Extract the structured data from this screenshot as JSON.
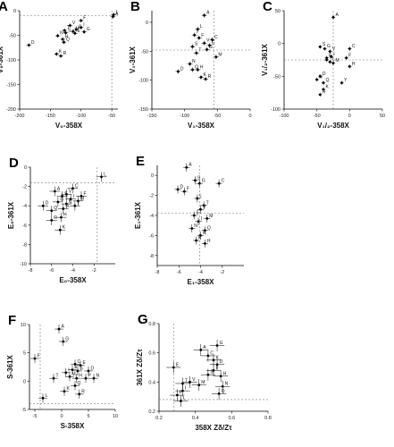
{
  "chart_data": [
    {
      "panel": "A",
      "type": "scatter",
      "xlabel": "V₀-358X",
      "ylabel": "V₀-361X",
      "xlim": [
        -200,
        -40
      ],
      "ylim": [
        -200,
        0
      ],
      "xticks": [
        -200,
        -150,
        -100,
        -50
      ],
      "yticks": [
        0,
        -50,
        -100,
        -150,
        -200
      ],
      "ref_x": -50,
      "ref_y": -10,
      "xerr": 4,
      "yerr": 4,
      "points": [
        {
          "l": "D",
          "x": -185,
          "y": -70
        },
        {
          "l": "F",
          "x": -100,
          "y": -20
        },
        {
          "l": "L",
          "x": -47,
          "y": -8
        },
        {
          "l": "A",
          "x": -48,
          "y": -12
        },
        {
          "l": "V",
          "x": -118,
          "y": -30
        },
        {
          "l": "I",
          "x": -100,
          "y": -34
        },
        {
          "l": "C",
          "x": -108,
          "y": -38
        },
        {
          "l": "T",
          "x": -127,
          "y": -40
        },
        {
          "l": "M",
          "x": -113,
          "y": -42
        },
        {
          "l": "G",
          "x": -95,
          "y": -43
        },
        {
          "l": "S",
          "x": -125,
          "y": -45
        },
        {
          "l": "E",
          "x": -110,
          "y": -46
        },
        {
          "l": "N",
          "x": -138,
          "y": -51
        },
        {
          "l": "H",
          "x": -130,
          "y": -58
        },
        {
          "l": "Q",
          "x": -128,
          "y": -64
        },
        {
          "l": "K",
          "x": -140,
          "y": -88
        },
        {
          "l": "R",
          "x": -133,
          "y": -92
        }
      ]
    },
    {
      "panel": "B",
      "type": "scatter",
      "xlabel": "V₁-358X",
      "ylabel": "V₁-361X",
      "xlim": [
        -150,
        0
      ],
      "ylim": [
        -150,
        20
      ],
      "xticks": [
        -150,
        -100,
        -50,
        0
      ],
      "yticks": [
        0,
        -50,
        -100,
        -150
      ],
      "ref_x": -55,
      "ref_y": -48,
      "xerr": 4,
      "yerr": 4,
      "points": [
        {
          "l": "A",
          "x": -70,
          "y": 12
        },
        {
          "l": "L",
          "x": -80,
          "y": -12
        },
        {
          "l": "I",
          "x": -85,
          "y": -22
        },
        {
          "l": "F",
          "x": -78,
          "y": -27
        },
        {
          "l": "C",
          "x": -58,
          "y": -30
        },
        {
          "l": "V",
          "x": -70,
          "y": -36
        },
        {
          "l": "E",
          "x": -62,
          "y": -40
        },
        {
          "l": "S",
          "x": -88,
          "y": -42
        },
        {
          "l": "G",
          "x": -66,
          "y": -47
        },
        {
          "l": "T",
          "x": -82,
          "y": -53
        },
        {
          "l": "M",
          "x": -52,
          "y": -60
        },
        {
          "l": "N",
          "x": -92,
          "y": -72
        },
        {
          "l": "Q",
          "x": -88,
          "y": -82
        },
        {
          "l": "H",
          "x": -80,
          "y": -82
        },
        {
          "l": "D",
          "x": -110,
          "y": -85
        },
        {
          "l": "K",
          "x": -75,
          "y": -95
        },
        {
          "l": "R",
          "x": -68,
          "y": -98
        }
      ]
    },
    {
      "panel": "C",
      "type": "scatter",
      "xlabel": "V₁/₂-358X",
      "ylabel": "V₁/₂-361X",
      "xlim": [
        -100,
        50
      ],
      "ylim": [
        -100,
        50
      ],
      "xticks": [
        -100,
        -50,
        0,
        50
      ],
      "yticks": [
        50,
        0,
        -50,
        -100
      ],
      "ref_x": -25,
      "ref_y": -25,
      "xerr": 3,
      "yerr": 3,
      "points": [
        {
          "l": "A",
          "x": -25,
          "y": 40
        },
        {
          "l": "S",
          "x": -45,
          "y": -5
        },
        {
          "l": "G",
          "x": -38,
          "y": -8
        },
        {
          "l": "V",
          "x": -30,
          "y": -12
        },
        {
          "l": "C",
          "x": 0,
          "y": -8
        },
        {
          "l": "I",
          "x": -28,
          "y": -20
        },
        {
          "l": "E",
          "x": -35,
          "y": -22
        },
        {
          "l": "T",
          "x": -35,
          "y": -25
        },
        {
          "l": "F",
          "x": -5,
          "y": -22
        },
        {
          "l": "L",
          "x": -30,
          "y": -28
        },
        {
          "l": "M",
          "x": -25,
          "y": -30
        },
        {
          "l": "H",
          "x": 0,
          "y": -35
        },
        {
          "l": "D",
          "x": -45,
          "y": -50
        },
        {
          "l": "N",
          "x": -50,
          "y": -55
        },
        {
          "l": "Q",
          "x": -40,
          "y": -60
        },
        {
          "l": "Y",
          "x": -12,
          "y": -60
        },
        {
          "l": "K",
          "x": -40,
          "y": -70
        },
        {
          "l": "R",
          "x": -45,
          "y": -78
        }
      ]
    },
    {
      "panel": "D",
      "type": "scatter",
      "xlabel": "E₀-358X",
      "ylabel": "E₀-361X",
      "xlim": [
        -8,
        0
      ],
      "ylim": [
        -10,
        0
      ],
      "xticks": [
        -8,
        -6,
        -4,
        -2
      ],
      "yticks": [
        0,
        -2,
        -4,
        -6,
        -8,
        -10
      ],
      "ref_x": -1.7,
      "ref_y": -1.6,
      "xerr": 0.5,
      "yerr": 0.5,
      "points": [
        {
          "l": "L",
          "x": -1.3,
          "y": -1.0
        },
        {
          "l": "C",
          "x": -4.0,
          "y": -2.2
        },
        {
          "l": "A",
          "x": -5.7,
          "y": -2.5
        },
        {
          "l": "V",
          "x": -4.6,
          "y": -2.8
        },
        {
          "l": "S",
          "x": -5.0,
          "y": -3.0
        },
        {
          "l": "F",
          "x": -3.2,
          "y": -3.0
        },
        {
          "l": "I",
          "x": -4.2,
          "y": -3.3
        },
        {
          "l": "M",
          "x": -3.5,
          "y": -3.5
        },
        {
          "l": "G",
          "x": -5.4,
          "y": -3.6
        },
        {
          "l": "E",
          "x": -4.6,
          "y": -3.8
        },
        {
          "l": "T",
          "x": -3.8,
          "y": -4.0
        },
        {
          "l": "D",
          "x": -6.8,
          "y": -4.0
        },
        {
          "l": "N",
          "x": -4.9,
          "y": -4.3
        },
        {
          "l": "Q",
          "x": -6.0,
          "y": -4.5
        },
        {
          "l": "H",
          "x": -5.1,
          "y": -5.2
        },
        {
          "l": "R",
          "x": -6.0,
          "y": -5.5
        },
        {
          "l": "K",
          "x": -5.2,
          "y": -6.5
        }
      ]
    },
    {
      "panel": "E",
      "type": "scatter",
      "xlabel": "E₁-358X",
      "ylabel": "E₁-361X",
      "xlim": [
        -8,
        0
      ],
      "ylim": [
        -9,
        1
      ],
      "xticks": [
        -8,
        -6,
        -4,
        -2
      ],
      "yticks": [
        0,
        -2,
        -4,
        -6,
        -8
      ],
      "ref_x": -4.1,
      "ref_y": -3.8,
      "xerr": 0.3,
      "yerr": 0.4,
      "points": [
        {
          "l": "A",
          "x": -5.3,
          "y": 0.8
        },
        {
          "l": "S",
          "x": -4.5,
          "y": -0.5
        },
        {
          "l": "G",
          "x": -4.1,
          "y": -0.8
        },
        {
          "l": "C",
          "x": -2.3,
          "y": -0.8
        },
        {
          "l": "D",
          "x": -6.1,
          "y": -1.4
        },
        {
          "l": "F",
          "x": -5.5,
          "y": -1.6
        },
        {
          "l": "L",
          "x": -4.3,
          "y": -2.3
        },
        {
          "l": "T",
          "x": -3.7,
          "y": -3.0
        },
        {
          "l": "V",
          "x": -4.0,
          "y": -3.4
        },
        {
          "l": "E",
          "x": -4.6,
          "y": -4.0
        },
        {
          "l": "M",
          "x": -3.4,
          "y": -4.3
        },
        {
          "l": "I",
          "x": -4.2,
          "y": -4.6
        },
        {
          "l": "N",
          "x": -4.8,
          "y": -5.3
        },
        {
          "l": "Q",
          "x": -3.6,
          "y": -5.5
        },
        {
          "l": "R",
          "x": -4.0,
          "y": -6.0
        },
        {
          "l": "K",
          "x": -4.4,
          "y": -6.5
        },
        {
          "l": "H",
          "x": -3.6,
          "y": -6.8
        }
      ]
    },
    {
      "panel": "F",
      "type": "scatter",
      "xlabel": "S-358X",
      "ylabel": "S-361X",
      "xlim": [
        -6,
        10
      ],
      "ylim": [
        -5,
        10
      ],
      "xticks": [
        -5,
        0,
        5,
        10
      ],
      "yticks": [
        10,
        5,
        0,
        -5
      ],
      "ref_x": -4,
      "ref_y": -4,
      "xerr": 0.8,
      "yerr": 0.8,
      "points": [
        {
          "l": "A",
          "x": -0.5,
          "y": 9.2
        },
        {
          "l": "G",
          "x": 0.3,
          "y": 7.0
        },
        {
          "l": "F",
          "x": -5.0,
          "y": 4.0
        },
        {
          "l": "C",
          "x": 2.5,
          "y": 3.0
        },
        {
          "l": "E",
          "x": 3.5,
          "y": 2.8
        },
        {
          "l": "V",
          "x": 2.0,
          "y": 2.0
        },
        {
          "l": "I",
          "x": 0.8,
          "y": 1.5
        },
        {
          "l": "S",
          "x": 3.0,
          "y": 1.8
        },
        {
          "l": "D",
          "x": 5.0,
          "y": 1.8
        },
        {
          "l": "M",
          "x": 1.5,
          "y": 0.8
        },
        {
          "l": "T",
          "x": -1.5,
          "y": 0.5
        },
        {
          "l": "H",
          "x": 2.8,
          "y": 0.5
        },
        {
          "l": "P",
          "x": 4.5,
          "y": 0.5
        },
        {
          "l": "N",
          "x": 6.0,
          "y": 0.5
        },
        {
          "l": "Q",
          "x": 2.5,
          "y": -0.8
        },
        {
          "l": "K",
          "x": 0.5,
          "y": -1.8
        },
        {
          "l": "R",
          "x": 3.3,
          "y": -2.3
        },
        {
          "l": "L",
          "x": -3.5,
          "y": -3.0
        }
      ]
    },
    {
      "panel": "G",
      "type": "scatter",
      "xlabel": "358X Zδ/Zτ",
      "ylabel": "361X Zδ/Zτ",
      "xlim": [
        0.2,
        0.8
      ],
      "ylim": [
        0.2,
        0.8
      ],
      "xticks": [
        0.2,
        0.4,
        0.6,
        0.8
      ],
      "yticks": [
        0.8,
        0.6,
        0.4,
        0.2
      ],
      "ref_x": 0.28,
      "ref_y": 0.28,
      "xerr": 0.04,
      "yerr": 0.04,
      "points": [
        {
          "l": "G",
          "x": 0.52,
          "y": 0.65
        },
        {
          "l": "A",
          "x": 0.43,
          "y": 0.62
        },
        {
          "l": "C",
          "x": 0.47,
          "y": 0.58
        },
        {
          "l": "K",
          "x": 0.5,
          "y": 0.55
        },
        {
          "l": "D",
          "x": 0.52,
          "y": 0.52
        },
        {
          "l": "E",
          "x": 0.28,
          "y": 0.5
        },
        {
          "l": "F",
          "x": 0.5,
          "y": 0.48
        },
        {
          "l": "S",
          "x": 0.47,
          "y": 0.45
        },
        {
          "l": "H",
          "x": 0.54,
          "y": 0.44
        },
        {
          "l": "V",
          "x": 0.37,
          "y": 0.4
        },
        {
          "l": "T",
          "x": 0.33,
          "y": 0.39
        },
        {
          "l": "M",
          "x": 0.42,
          "y": 0.38
        },
        {
          "l": "N",
          "x": 0.55,
          "y": 0.37
        },
        {
          "l": "I",
          "x": 0.33,
          "y": 0.34
        },
        {
          "l": "Q",
          "x": 0.53,
          "y": 0.32
        },
        {
          "l": "P",
          "x": 0.3,
          "y": 0.31
        },
        {
          "l": "L",
          "x": 0.32,
          "y": 0.27
        }
      ]
    }
  ]
}
